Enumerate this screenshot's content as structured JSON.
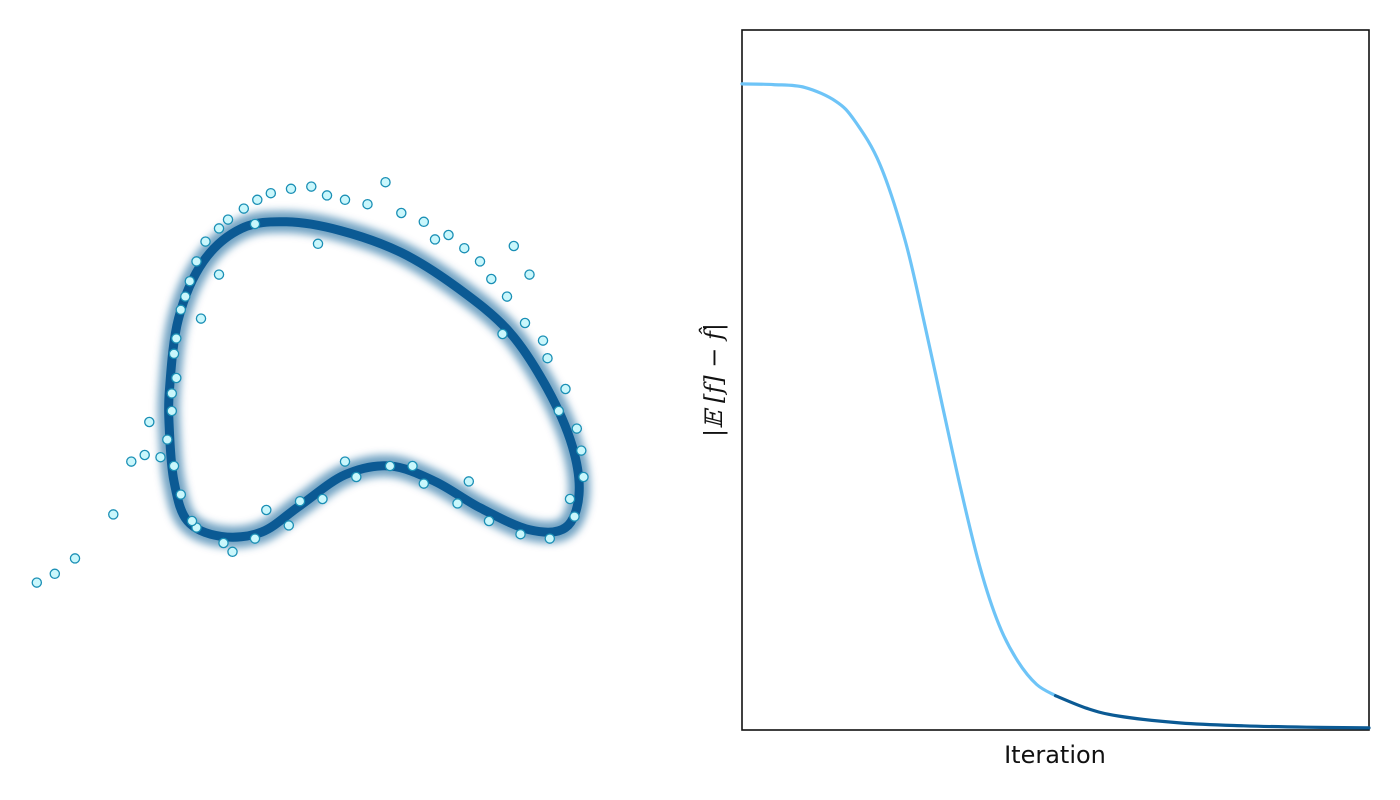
{
  "chart_data": [
    {
      "type": "scatter",
      "title": "",
      "xlabel": "",
      "ylabel": "",
      "axes_visible": false,
      "colors": {
        "curve": "#0b5a94",
        "point_fill": "#c9f7fc",
        "point_edge": "#1a8fb5"
      },
      "curve": [
        [
          -0.98,
          0.3
        ],
        [
          -0.94,
          0.62
        ],
        [
          -0.83,
          0.88
        ],
        [
          -0.66,
          1.03
        ],
        [
          -0.46,
          1.06
        ],
        [
          -0.22,
          1.02
        ],
        [
          0.05,
          0.92
        ],
        [
          0.3,
          0.76
        ],
        [
          0.53,
          0.56
        ],
        [
          0.7,
          0.3
        ],
        [
          0.81,
          0.04
        ],
        [
          0.84,
          -0.18
        ],
        [
          0.78,
          -0.33
        ],
        [
          0.62,
          -0.34
        ],
        [
          0.4,
          -0.24
        ],
        [
          0.2,
          -0.12
        ],
        [
          0.0,
          -0.05
        ],
        [
          -0.2,
          -0.09
        ],
        [
          -0.4,
          -0.23
        ],
        [
          -0.57,
          -0.35
        ],
        [
          -0.75,
          -0.37
        ],
        [
          -0.9,
          -0.3
        ],
        [
          -0.96,
          -0.12
        ],
        [
          -0.98,
          0.1
        ]
      ],
      "points": [
        [
          -1.57,
          -0.58
        ],
        [
          -1.49,
          -0.54
        ],
        [
          -1.4,
          -0.47
        ],
        [
          -1.23,
          -0.27
        ],
        [
          -1.15,
          -0.03
        ],
        [
          -1.09,
          0.0
        ],
        [
          -1.07,
          0.15
        ],
        [
          -1.02,
          -0.01
        ],
        [
          -0.99,
          0.07
        ],
        [
          -0.97,
          0.2
        ],
        [
          -0.95,
          0.35
        ],
        [
          -0.96,
          0.46
        ],
        [
          -0.95,
          0.53
        ],
        [
          -0.93,
          0.66
        ],
        [
          -0.91,
          0.72
        ],
        [
          -0.89,
          0.79
        ],
        [
          -0.86,
          0.88
        ],
        [
          -0.82,
          0.97
        ],
        [
          -0.76,
          1.03
        ],
        [
          -0.72,
          1.07
        ],
        [
          -0.65,
          1.12
        ],
        [
          -0.59,
          1.16
        ],
        [
          -0.53,
          1.19
        ],
        [
          -0.44,
          1.21
        ],
        [
          -0.35,
          1.22
        ],
        [
          -0.28,
          1.18
        ],
        [
          -0.2,
          1.16
        ],
        [
          -0.1,
          1.14
        ],
        [
          -0.02,
          1.24
        ],
        [
          0.05,
          1.1
        ],
        [
          0.15,
          1.06
        ],
        [
          0.26,
          1.0
        ],
        [
          0.33,
          0.94
        ],
        [
          0.4,
          0.88
        ],
        [
          0.45,
          0.8
        ],
        [
          0.52,
          0.72
        ],
        [
          0.6,
          0.6
        ],
        [
          0.7,
          0.44
        ],
        [
          0.78,
          0.3
        ],
        [
          0.83,
          0.12
        ],
        [
          0.85,
          0.02
        ],
        [
          0.86,
          -0.1
        ],
        [
          0.82,
          -0.28
        ],
        [
          0.71,
          -0.38
        ],
        [
          0.58,
          -0.36
        ],
        [
          0.44,
          -0.3
        ],
        [
          0.3,
          -0.22
        ],
        [
          0.15,
          -0.13
        ],
        [
          0.0,
          -0.05
        ],
        [
          -0.15,
          -0.1
        ],
        [
          -0.3,
          -0.2
        ],
        [
          -0.45,
          -0.32
        ],
        [
          -0.6,
          -0.38
        ],
        [
          -0.74,
          -0.4
        ],
        [
          -0.86,
          -0.33
        ],
        [
          -0.93,
          -0.18
        ],
        [
          -0.96,
          -0.05
        ],
        [
          -0.88,
          -0.3
        ],
        [
          -0.7,
          -0.44
        ],
        [
          -0.55,
          -0.25
        ],
        [
          -0.4,
          -0.21
        ],
        [
          -0.2,
          -0.03
        ],
        [
          0.1,
          -0.05
        ],
        [
          0.35,
          -0.12
        ],
        [
          0.62,
          0.82
        ],
        [
          0.5,
          0.55
        ],
        [
          0.68,
          0.52
        ],
        [
          -0.84,
          0.62
        ],
        [
          -0.76,
          0.82
        ],
        [
          -0.6,
          1.05
        ],
        [
          0.2,
          0.98
        ],
        [
          0.55,
          0.95
        ],
        [
          0.75,
          0.2
        ],
        [
          0.8,
          -0.2
        ],
        [
          -0.97,
          0.28
        ],
        [
          -0.32,
          0.96
        ]
      ]
    },
    {
      "type": "line",
      "title": "",
      "xlabel": "Iteration",
      "ylabel": "|𝔼 [f] − f̂|",
      "xlim": [
        0,
        1
      ],
      "ylim": [
        0,
        1
      ],
      "grid": false,
      "ticks_visible": false,
      "highlight_from_x": 0.5,
      "colors": {
        "line_main": "#6ec4f7",
        "line_tail": "#0b5a94",
        "frame": "#111111"
      },
      "x": [
        0.0,
        0.05,
        0.1,
        0.15,
        0.18,
        0.22,
        0.26,
        0.29,
        0.32,
        0.35,
        0.38,
        0.41,
        0.44,
        0.47,
        0.5,
        0.55,
        0.6,
        0.7,
        0.8,
        0.9,
        1.0
      ],
      "y": [
        0.923,
        0.922,
        0.918,
        0.898,
        0.87,
        0.808,
        0.7,
        0.585,
        0.462,
        0.34,
        0.231,
        0.15,
        0.098,
        0.065,
        0.049,
        0.031,
        0.02,
        0.01,
        0.006,
        0.004,
        0.003
      ]
    }
  ]
}
